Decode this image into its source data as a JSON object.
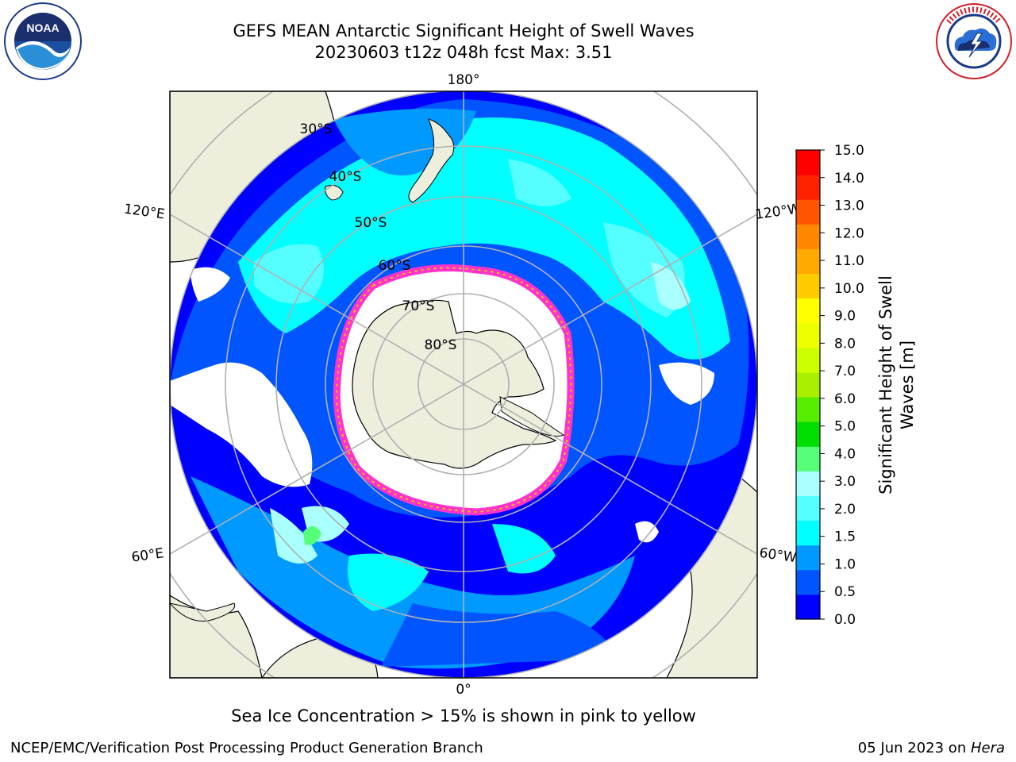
{
  "title_line1": "GEFS MEAN Antarctic Significant Height of Swell Waves",
  "title_line2": "20230603 t12z 048h fcst   Max: 3.51",
  "logos": {
    "noaa_text": "NOAA",
    "noaa_ring_text": "NATIONAL OCEANIC AND ATMOSPHERIC ADMINISTRATION",
    "noaa_ring_bottom": "U.S. DEPARTMENT OF COMMERCE",
    "nws_ring_text": "NATIONAL WEATHER SERVICE"
  },
  "map": {
    "projection": "south-polar-stereographic",
    "longitude_labels": {
      "top": "180°",
      "bottom": "0°",
      "upper_left": "120°E",
      "upper_right": "120°W",
      "lower_left": "60°E",
      "lower_right": "60°W"
    },
    "latitude_labels": [
      "30°S",
      "40°S",
      "50°S",
      "60°S",
      "70°S",
      "80°S"
    ],
    "colors": {
      "land": "#eeeedd",
      "ice_free_open": "#ffffff",
      "gridline": "#b0b0b0",
      "ice_edge": "#ff33cc"
    }
  },
  "colorbar": {
    "label_line1": "Significant Height of Swell",
    "label_line2": "Waves [m]",
    "ticks": [
      "0.0",
      "0.5",
      "1.0",
      "1.5",
      "2.0",
      "3.0",
      "4.0",
      "5.0",
      "6.0",
      "7.0",
      "8.0",
      "9.0",
      "10.0",
      "11.0",
      "12.0",
      "13.0",
      "14.0",
      "15.0"
    ],
    "colors": [
      "#0000ff",
      "#0055ff",
      "#0099ff",
      "#00ffff",
      "#55ffff",
      "#aaffff",
      "#55ff77",
      "#00dd00",
      "#55ee00",
      "#aaee00",
      "#ccff00",
      "#eeff00",
      "#ffff00",
      "#ffcc00",
      "#ffaa00",
      "#ff8800",
      "#ff5500",
      "#ff2200",
      "#ff0000"
    ]
  },
  "note": "Sea Ice Concentration > 15% is shown in pink to yellow",
  "footer_left": "NCEP/EMC/Verification Post Processing Product Generation Branch",
  "footer_right_date": "05 Jun 2023 on ",
  "footer_right_host": "Hera"
}
